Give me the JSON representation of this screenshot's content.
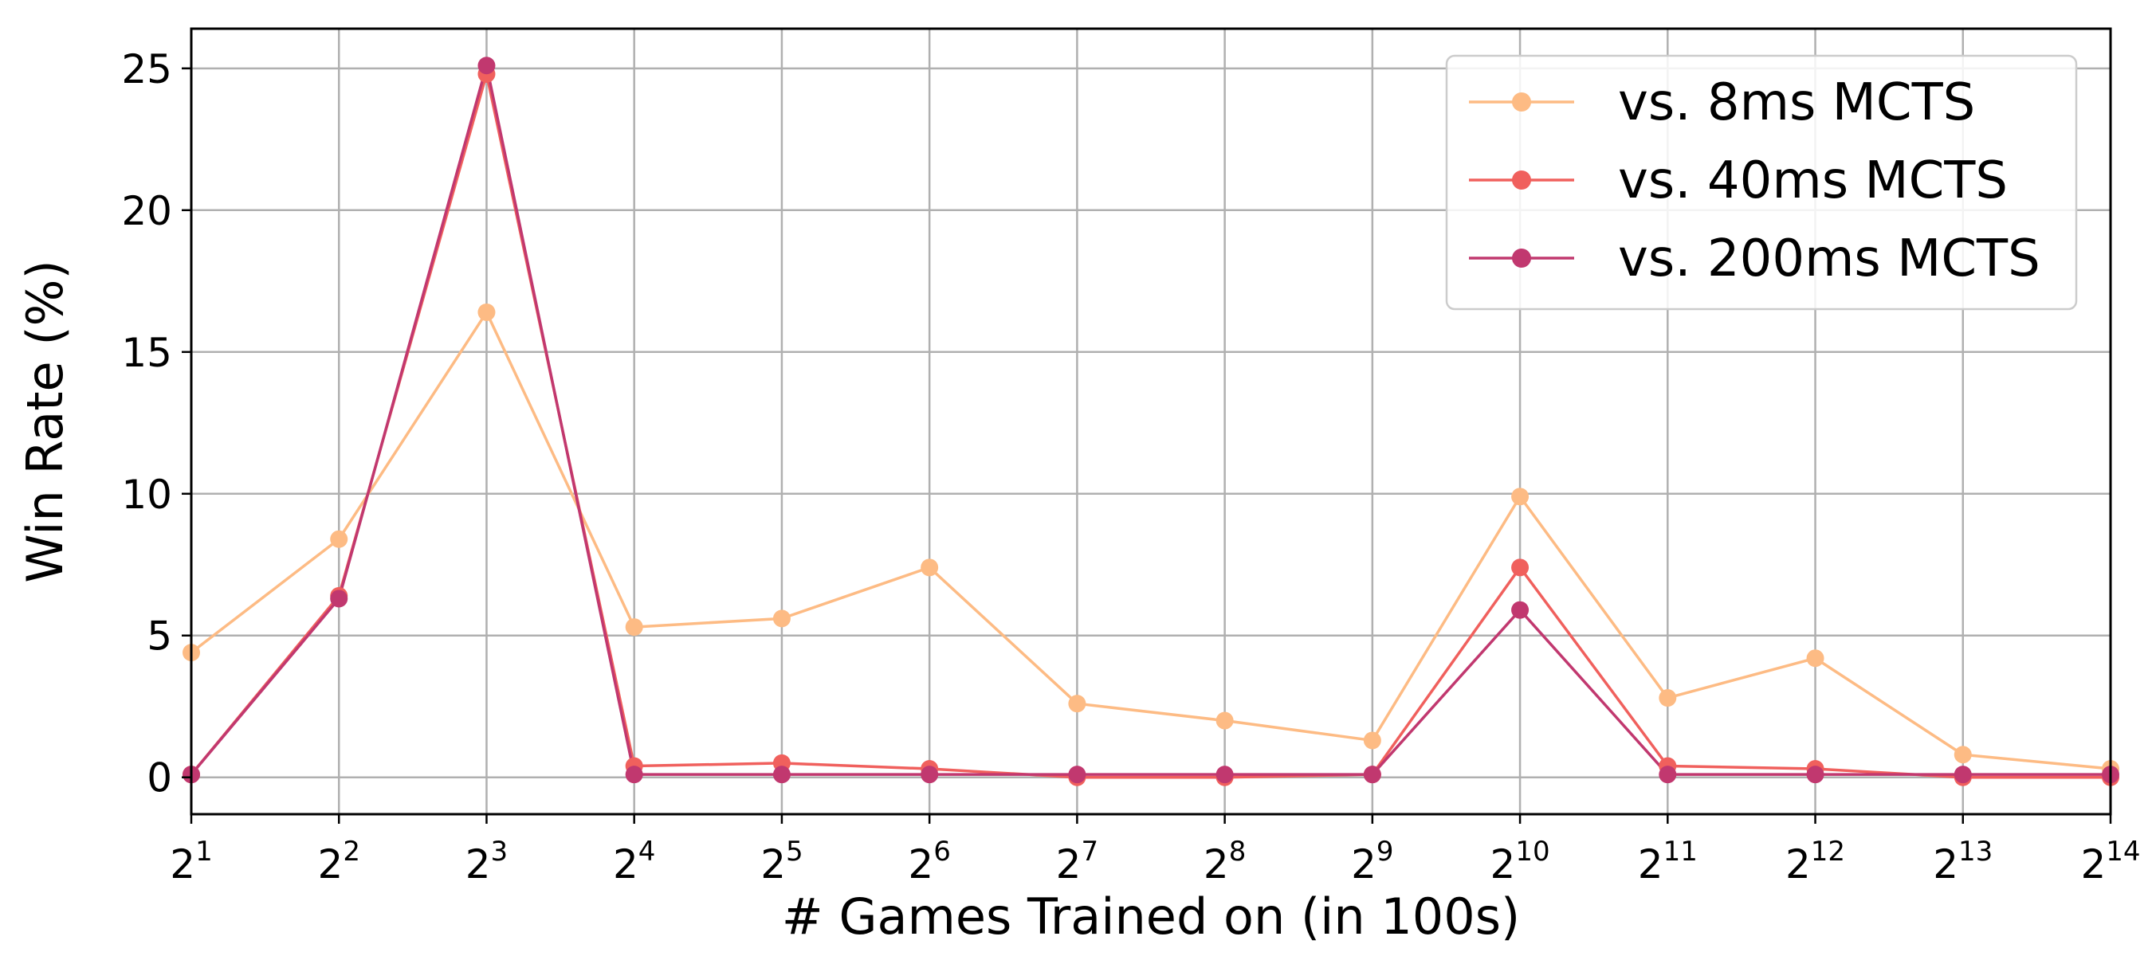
{
  "chart_data": {
    "type": "line",
    "title": "",
    "xlabel": "# Games Trained on (in 100s)",
    "ylabel": "Win Rate (%)",
    "x_scale": "log2",
    "x": [
      2,
      4,
      8,
      16,
      32,
      64,
      128,
      256,
      512,
      1024,
      2048,
      4096,
      8192,
      16384
    ],
    "x_tick_labels": [
      {
        "base": "2",
        "exp": "1"
      },
      {
        "base": "2",
        "exp": "2"
      },
      {
        "base": "2",
        "exp": "3"
      },
      {
        "base": "2",
        "exp": "4"
      },
      {
        "base": "2",
        "exp": "5"
      },
      {
        "base": "2",
        "exp": "6"
      },
      {
        "base": "2",
        "exp": "7"
      },
      {
        "base": "2",
        "exp": "8"
      },
      {
        "base": "2",
        "exp": "9"
      },
      {
        "base": "2",
        "exp": "10"
      },
      {
        "base": "2",
        "exp": "11"
      },
      {
        "base": "2",
        "exp": "12"
      },
      {
        "base": "2",
        "exp": "13"
      },
      {
        "base": "2",
        "exp": "14"
      }
    ],
    "xlim": [
      2,
      16384
    ],
    "ylim": [
      -1.3,
      26.4
    ],
    "y_ticks": [
      0,
      5,
      10,
      15,
      20,
      25
    ],
    "y_tick_labels": [
      "0",
      "5",
      "10",
      "15",
      "20",
      "25"
    ],
    "grid": true,
    "legend_position": "top-right",
    "series": [
      {
        "name": "vs. 8ms MCTS",
        "color": "#fdbb84",
        "values": [
          4.4,
          8.4,
          16.4,
          5.3,
          5.6,
          7.4,
          2.6,
          2.0,
          1.3,
          9.9,
          2.8,
          4.2,
          0.8,
          0.3
        ]
      },
      {
        "name": "vs. 40ms MCTS",
        "color": "#f0605d",
        "values": [
          0.1,
          6.4,
          24.8,
          0.4,
          0.5,
          0.3,
          0.0,
          0.0,
          0.1,
          7.4,
          0.4,
          0.3,
          0.0,
          0.0
        ]
      },
      {
        "name": "vs. 200ms MCTS",
        "color": "#c1386f",
        "values": [
          0.1,
          6.3,
          25.1,
          0.1,
          0.1,
          0.1,
          0.1,
          0.1,
          0.1,
          5.9,
          0.1,
          0.1,
          0.1,
          0.1
        ]
      }
    ]
  }
}
